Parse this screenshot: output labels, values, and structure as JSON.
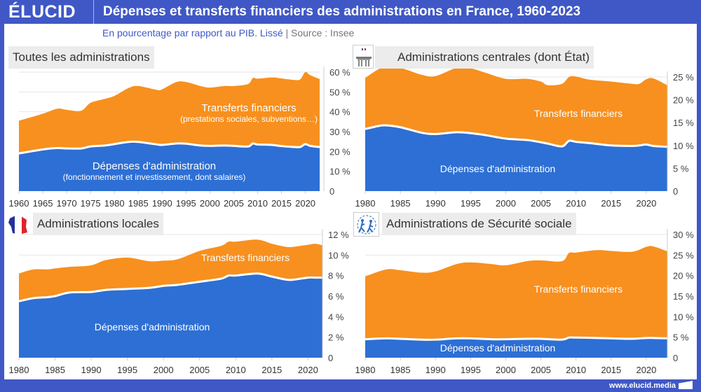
{
  "header": {
    "logo": "ÉLUCID",
    "title": "Dépenses et transferts financiers des administrations en France, 1960-2023"
  },
  "subtitle": {
    "text": "En pourcentage par rapport au PIB. Lissé",
    "source": " |  Source : Insee"
  },
  "footer": "www.elucid.media",
  "colors": {
    "transfers": "#f7901e",
    "admin": "#2d6fd4",
    "header": "#3f58c6"
  },
  "chart_data": [
    {
      "type": "area",
      "stacked": true,
      "title": "Toutes les administrations",
      "label_transfers": "Transferts financiers",
      "label_transfers_sub": "(prestations sociales, subventions…)",
      "label_admin": "Dépenses d'administration",
      "label_admin_sub": "(fonctionnement et investissement, dont salaires)",
      "ylim": [
        0,
        60
      ],
      "yticks": [
        "0",
        "10 %",
        "20 %",
        "30 %",
        "40 %",
        "50 %",
        "60 %"
      ],
      "xticks": [
        "1960",
        "1965",
        "1970",
        "1975",
        "1980",
        "1985",
        "1990",
        "1995",
        "2000",
        "2005",
        "2010",
        "2015",
        "2020"
      ],
      "x": [
        1960,
        1965,
        1968,
        1970,
        1973,
        1975,
        1978,
        1980,
        1983,
        1985,
        1989,
        1990,
        1993,
        1995,
        1998,
        2000,
        2003,
        2005,
        2008,
        2009,
        2010,
        2013,
        2015,
        2018,
        2019,
        2020,
        2021,
        2023
      ],
      "total": [
        35.5,
        39,
        41.5,
        41,
        40.5,
        44.5,
        46.5,
        48,
        52,
        53,
        51,
        51.3,
        55,
        55,
        53,
        52.2,
        53,
        53,
        54,
        57,
        56.7,
        57.3,
        56.8,
        56,
        56.5,
        61.3,
        58.5,
        56.5
      ],
      "admin": [
        19,
        21,
        21.7,
        21.5,
        21.5,
        22.5,
        23,
        23.7,
        24.8,
        24.8,
        23.5,
        23.3,
        24,
        23.9,
        23,
        22.8,
        23,
        22.8,
        22.5,
        24,
        23.5,
        23.3,
        22.7,
        22.2,
        22.3,
        23.7,
        22.8,
        22.2
      ]
    },
    {
      "type": "area",
      "stacked": true,
      "title": "Administrations centrales (dont État)",
      "label_transfers": "Transferts financiers",
      "label_admin": "Dépenses d'administration",
      "ylim": [
        0,
        27
      ],
      "yticks": [
        "0",
        "5 %",
        "10 %",
        "15 %",
        "20 %",
        "25 %"
      ],
      "xticks": [
        "1980",
        "1985",
        "1990",
        "1995",
        "2000",
        "2005",
        "2010",
        "2015",
        "2020"
      ],
      "x": [
        1980,
        1982,
        1983,
        1985,
        1988,
        1990,
        1993,
        1995,
        1997,
        2000,
        2003,
        2005,
        2006,
        2008,
        2009,
        2010,
        2012,
        2015,
        2018,
        2019,
        2020,
        2021,
        2023
      ],
      "total": [
        24.8,
        26.8,
        27,
        27,
        25.5,
        25.2,
        27,
        26.9,
        26,
        24.6,
        24.6,
        24,
        23.2,
        23.5,
        25,
        25.1,
        24.4,
        24,
        23.5,
        23.5,
        24.5,
        24.7,
        23.2
      ],
      "admin": [
        13.6,
        14.3,
        14.4,
        14,
        12.8,
        12.5,
        12.9,
        12.7,
        12.3,
        11.5,
        11.2,
        10.7,
        10.4,
        9.8,
        11,
        10.8,
        10.5,
        10,
        9.9,
        10,
        10.2,
        9.9,
        9.7
      ]
    },
    {
      "type": "area",
      "stacked": true,
      "title": "Administrations locales",
      "label_transfers": "Transferts financiers",
      "label_admin": "Dépenses d'administration",
      "ylim": [
        0,
        12
      ],
      "yticks": [
        "0",
        "2 %",
        "4 %",
        "6 %",
        "8 %",
        "10 %",
        "12 %"
      ],
      "xticks": [
        "1980",
        "1985",
        "1990",
        "1995",
        "2000",
        "2005",
        "2010",
        "2015",
        "2020"
      ],
      "x": [
        1980,
        1982,
        1984,
        1985,
        1987,
        1990,
        1992,
        1995,
        1998,
        2000,
        2002,
        2005,
        2008,
        2009,
        2010,
        2013,
        2015,
        2017,
        2018,
        2020,
        2021,
        2022
      ],
      "total": [
        8.2,
        8.6,
        8.6,
        8.7,
        8.85,
        9,
        9.5,
        9.75,
        9.4,
        9.45,
        9.6,
        10.4,
        10.9,
        11.3,
        11.3,
        11.5,
        11.1,
        10.8,
        10.8,
        11,
        11.1,
        10.95
      ],
      "admin": [
        5.5,
        5.8,
        5.9,
        6,
        6.35,
        6.4,
        6.6,
        6.7,
        6.8,
        7,
        7.1,
        7.4,
        7.7,
        8,
        8,
        8.2,
        7.9,
        7.6,
        7.6,
        7.8,
        7.8,
        7.8
      ]
    },
    {
      "type": "area",
      "stacked": true,
      "title": "Administrations de Sécurité sociale",
      "label_transfers": "Transferts financiers",
      "label_admin": "Dépenses d'administration",
      "ylim": [
        0,
        30
      ],
      "yticks": [
        "0",
        "5 %",
        "10 %",
        "15 %",
        "20 %",
        "25 %",
        "30 %"
      ],
      "xticks": [
        "1980",
        "1985",
        "1990",
        "1995",
        "2000",
        "2005",
        "2010",
        "2015",
        "2020"
      ],
      "x": [
        1980,
        1983,
        1985,
        1988,
        1990,
        1993,
        1995,
        1998,
        2000,
        2003,
        2005,
        2008,
        2009,
        2010,
        2013,
        2015,
        2018,
        2020,
        2021,
        2023
      ],
      "total": [
        19.8,
        21.5,
        21.3,
        20.7,
        21,
        22.8,
        23.2,
        22.8,
        22.5,
        23.5,
        23.7,
        23.5,
        25.5,
        25.6,
        26.2,
        26,
        25.8,
        27,
        27.1,
        25.9
      ],
      "admin": [
        4.5,
        4.7,
        4.6,
        4.4,
        4.4,
        4.7,
        4.7,
        4.5,
        4.5,
        4.6,
        4.6,
        4.4,
        4.9,
        4.9,
        4.8,
        4.7,
        4.6,
        4.8,
        4.8,
        4.7
      ]
    }
  ]
}
